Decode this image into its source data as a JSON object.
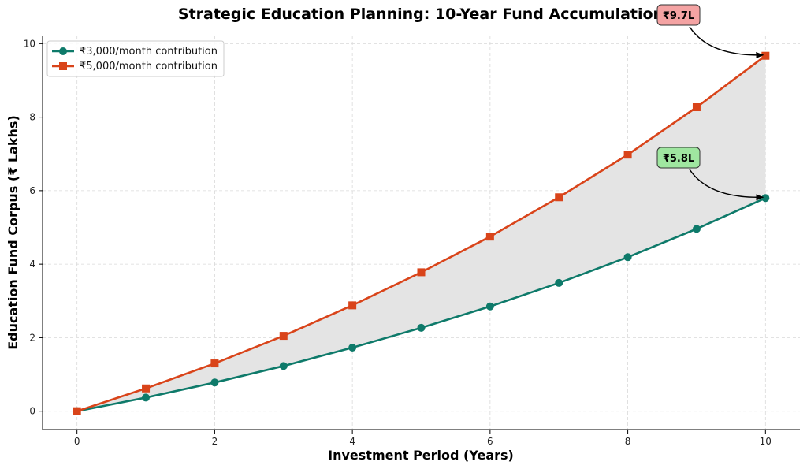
{
  "chart_data": {
    "type": "line",
    "title": "Strategic Education Planning: 10-Year Fund Accumulation",
    "xlabel": "Investment Period (Years)",
    "ylabel": "Education Fund Corpus (₹ Lakhs)",
    "x": [
      0,
      1,
      2,
      3,
      4,
      5,
      6,
      7,
      8,
      9,
      10
    ],
    "xticks": [
      "0",
      "2",
      "4",
      "6",
      "8",
      "10"
    ],
    "yticks": [
      "0",
      "2",
      "4",
      "6",
      "8",
      "10"
    ],
    "xlim": [
      -0.5,
      10.5
    ],
    "ylim": [
      -0.5,
      10.2
    ],
    "grid": true,
    "legend_position": "top-left",
    "fill_between_series": true,
    "fill_color": "#e4e4e4",
    "series": [
      {
        "name": "₹3,000/month contribution",
        "color": "#0e7a6a",
        "marker": "circle",
        "values": [
          0,
          0.37,
          0.78,
          1.23,
          1.73,
          2.27,
          2.85,
          3.49,
          4.19,
          4.96,
          5.8
        ]
      },
      {
        "name": "₹5,000/month contribution",
        "color": "#d9441a",
        "marker": "square",
        "values": [
          0,
          0.62,
          1.3,
          2.05,
          2.88,
          3.78,
          4.75,
          5.82,
          6.98,
          8.27,
          9.67
        ]
      }
    ],
    "annotations": [
      {
        "text": "₹9.7L",
        "series_index": 1,
        "point_index": 10,
        "bg": "#f4a3a3"
      },
      {
        "text": "₹5.8L",
        "series_index": 0,
        "point_index": 10,
        "bg": "#9fe6a0"
      }
    ]
  }
}
